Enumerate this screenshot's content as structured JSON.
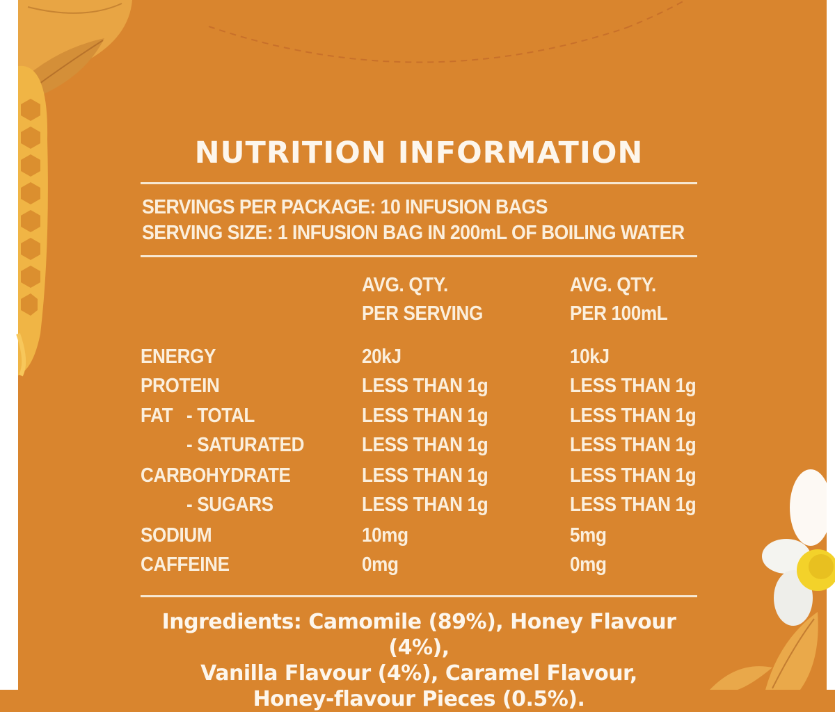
{
  "panel": {
    "title": "NUTRITION INFORMATION",
    "servings_per_package": "SERVINGS PER PACKAGE: 10 INFUSION BAGS",
    "serving_size": "SERVING SIZE: 1 INFUSION BAG IN 200mL OF BOILING WATER",
    "col_headers": {
      "per_serving_line1": "AVG. QTY.",
      "per_serving_line2": "PER SERVING",
      "per_100ml_line1": "AVG. QTY.",
      "per_100ml_line2": "PER 100mL"
    },
    "rows": [
      {
        "label": "ENERGY",
        "per_serving": "20kJ",
        "per_100ml": "10kJ"
      },
      {
        "label": "PROTEIN",
        "per_serving": "LESS THAN 1g",
        "per_100ml": "LESS THAN 1g"
      },
      {
        "label": "FAT",
        "sublabel": "- TOTAL",
        "per_serving": "LESS THAN 1g",
        "per_100ml": "LESS THAN 1g"
      },
      {
        "label": "- SATURATED",
        "per_serving": "LESS THAN 1g",
        "per_100ml": "LESS THAN 1g"
      },
      {
        "label": "CARBOHYDRATE",
        "per_serving": "LESS THAN 1g",
        "per_100ml": "LESS THAN 1g"
      },
      {
        "label": "- SUGARS",
        "per_serving": "LESS THAN 1g",
        "per_100ml": "LESS THAN 1g"
      },
      {
        "label": "SODIUM",
        "per_serving": "10mg",
        "per_100ml": "5mg"
      },
      {
        "label": "CAFFEINE",
        "per_serving": "0mg",
        "per_100ml": "0mg"
      }
    ],
    "ingredients": {
      "line1": "Ingredients: Camomile (89%), Honey Flavour (4%),",
      "line2": "Vanilla Flavour (4%), Caramel Flavour,",
      "line3": "Honey-flavour Pieces (0.5%)."
    }
  },
  "colors": {
    "background": "#d9852e",
    "text": "#fbefdd",
    "rule": "#f7e8d2"
  },
  "decorations": [
    "leaf-icon",
    "honeycomb-icon",
    "camomile-flower-icon"
  ]
}
